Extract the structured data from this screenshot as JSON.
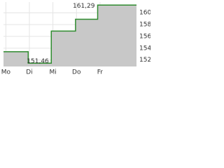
{
  "chart_data": {
    "type": "step",
    "x": [
      -0.1,
      0.95,
      1.93,
      2.96,
      3.9,
      5.55
    ],
    "series": [
      {
        "color": "#2e8b2e",
        "values": [
          153.4,
          151.46,
          156.9,
          158.9,
          161.29,
          161.29
        ]
      }
    ],
    "xlim": [
      -0.1,
      5.55
    ],
    "xticks": [
      {
        "value": 0,
        "label": "Mo"
      },
      {
        "value": 1,
        "label": "Di"
      },
      {
        "value": 2,
        "label": "Mi"
      },
      {
        "value": 3,
        "label": "Do"
      },
      {
        "value": 4,
        "label": "Fr"
      }
    ],
    "ylim": [
      150.9,
      161.8
    ],
    "yticks": [
      152,
      154,
      156,
      158,
      160
    ],
    "grid": true,
    "fill": "#c8c8c8",
    "annotations": [
      {
        "text": "161,29"
      },
      {
        "text": "151,46"
      }
    ]
  }
}
